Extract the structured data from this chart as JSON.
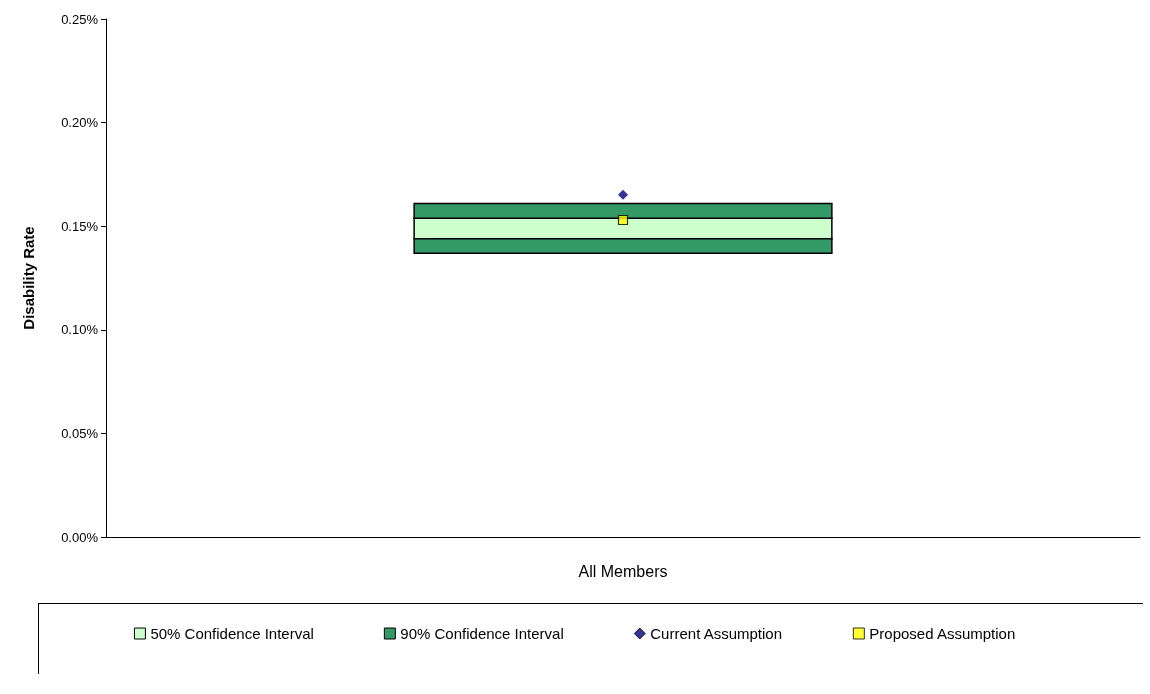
{
  "chart_data": {
    "type": "bar",
    "ylabel": "Disability Rate",
    "categories": [
      "All Members"
    ],
    "ylim": [
      0,
      0.25
    ],
    "yticks": [
      {
        "value": 0,
        "label": "0.00%"
      },
      {
        "value": 0.05,
        "label": "0.05%"
      },
      {
        "value": 0.1,
        "label": "0.10%"
      },
      {
        "value": 0.15,
        "label": "0.15%"
      },
      {
        "value": 0.2,
        "label": "0.20%"
      },
      {
        "value": 0.25,
        "label": "0.25%"
      }
    ],
    "grid": false,
    "legend": "bottom",
    "series": [
      {
        "name": "50% Confidence Interval",
        "color": "#ccffcc",
        "base": [
          0.144
        ],
        "values": [
          0.0098
        ]
      },
      {
        "name": "90% Confidence Interval",
        "color": "#339966",
        "base": [
          0.137
        ],
        "values": [
          0.007
        ]
      },
      {
        "color": "#339966",
        "base": [
          0.1538
        ],
        "values": [
          0.0071
        ]
      },
      {
        "type": "scatter",
        "name": "Current Assumption",
        "color": "#000080",
        "marker": "diamond",
        "values": [
          0.1652
        ]
      },
      {
        "type": "scatter",
        "name": "Proposed Assumption",
        "color": "#ffff00",
        "marker": "square",
        "values": [
          0.153
        ]
      }
    ]
  }
}
